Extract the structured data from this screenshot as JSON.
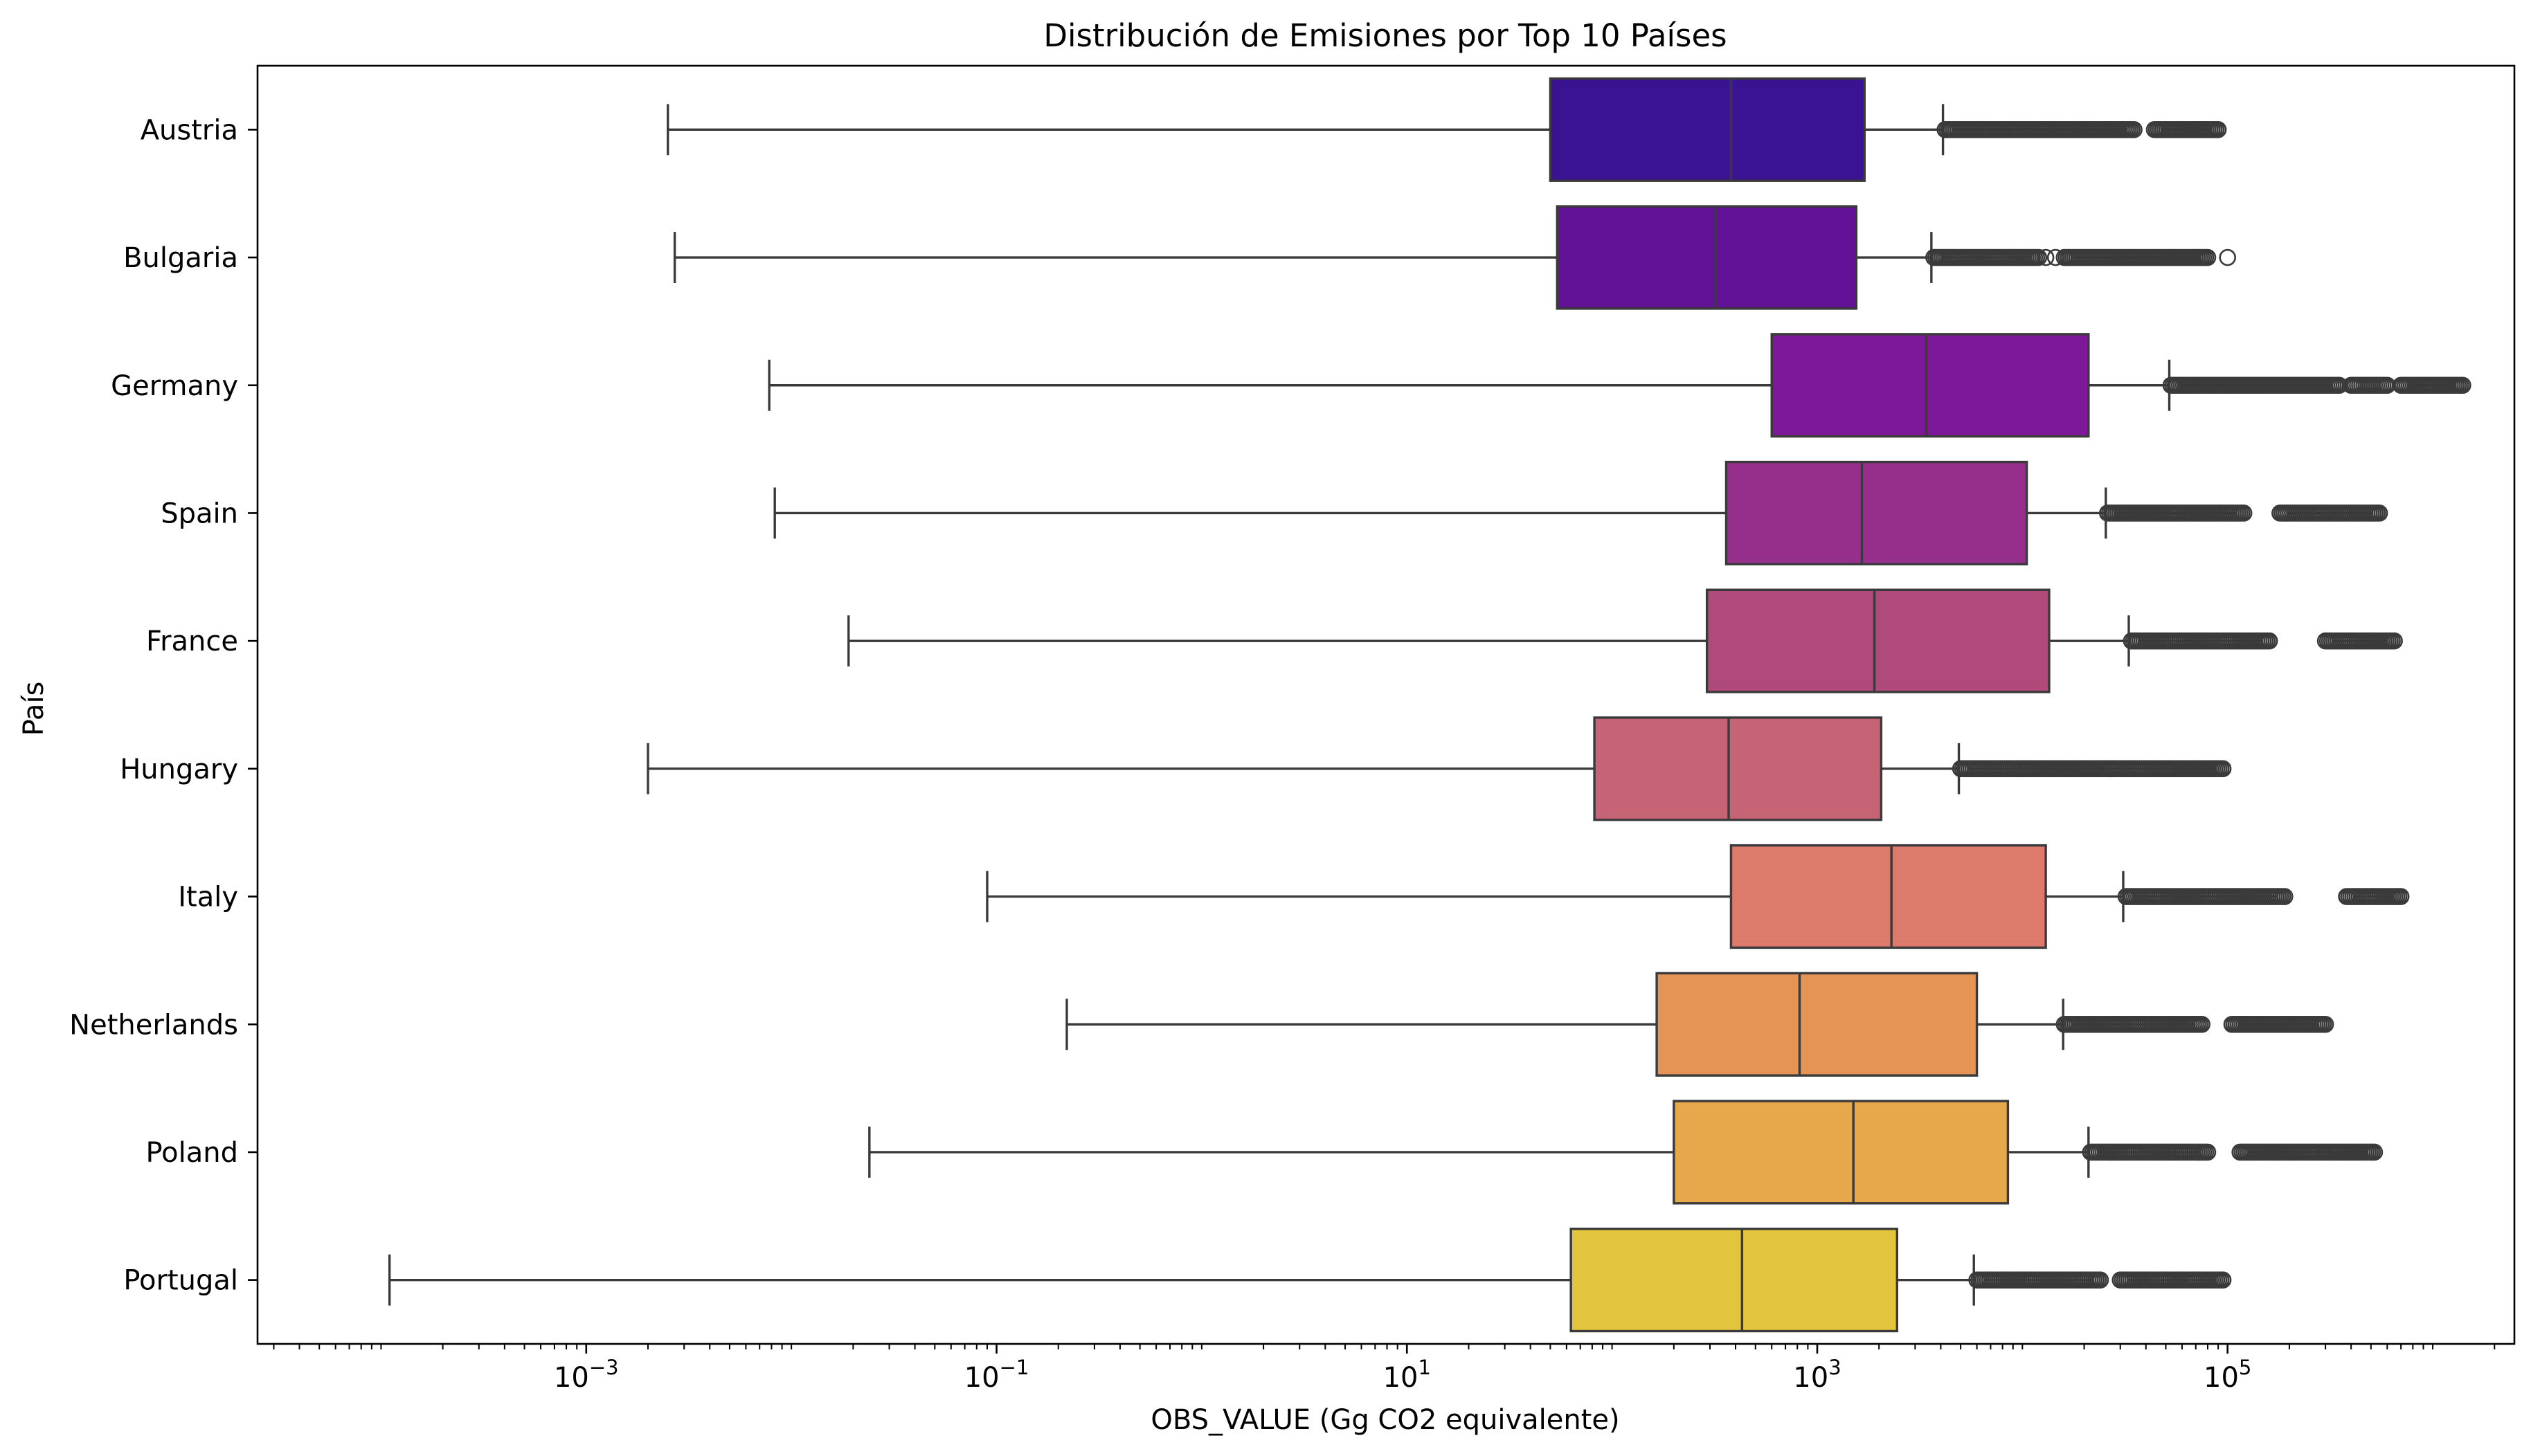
{
  "chart_data": {
    "type": "boxplot",
    "orientation": "horizontal",
    "title": "Distribución de Emisiones por Top 10 Países",
    "xlabel": "OBS_VALUE (Gg CO2 equivalente)",
    "ylabel": "País",
    "x_scale": "log",
    "xlim": [
      2.5e-05,
      2500000
    ],
    "xticks": [
      {
        "value": 0.001,
        "base": "10",
        "exp": "−3"
      },
      {
        "value": 0.1,
        "base": "10",
        "exp": "−1"
      },
      {
        "value": 10,
        "base": "10",
        "exp": "1"
      },
      {
        "value": 1000,
        "base": "10",
        "exp": "3"
      },
      {
        "value": 100000,
        "base": "10",
        "exp": "5"
      }
    ],
    "grid": false,
    "legend": "none",
    "series": [
      {
        "name": "Austria",
        "color": "#3a1392",
        "whisker_low": 0.0025,
        "q1": 50,
        "median": 380,
        "q3": 1700,
        "whisker_high": 4100,
        "outlier_ranges": [
          [
            4200,
            35000
          ],
          [
            44000,
            90000
          ]
        ]
      },
      {
        "name": "Bulgaria",
        "color": "#611296",
        "whisker_low": 0.0027,
        "q1": 54,
        "median": 320,
        "q3": 1550,
        "whisker_high": 3600,
        "outlier_ranges": [
          [
            3700,
            12000
          ],
          [
            16000,
            80000
          ]
        ],
        "outliers": [
          13000,
          14500,
          100000
        ]
      },
      {
        "name": "Germany",
        "color": "#7d1898",
        "whisker_low": 0.0078,
        "q1": 600,
        "median": 3400,
        "q3": 21000,
        "whisker_high": 52000,
        "outlier_ranges": [
          [
            53000,
            350000
          ],
          [
            400000,
            600000
          ],
          [
            700000,
            1400000
          ]
        ]
      },
      {
        "name": "Spain",
        "color": "#962e8c",
        "whisker_low": 0.0083,
        "q1": 360,
        "median": 1650,
        "q3": 10500,
        "whisker_high": 25500,
        "outlier_ranges": [
          [
            26000,
            120000
          ],
          [
            180000,
            550000
          ]
        ]
      },
      {
        "name": "France",
        "color": "#b04a7a",
        "whisker_low": 0.019,
        "q1": 290,
        "median": 1900,
        "q3": 13500,
        "whisker_high": 33000,
        "outlier_ranges": [
          [
            34000,
            160000
          ],
          [
            300000,
            650000
          ]
        ]
      },
      {
        "name": "Hungary",
        "color": "#c66375",
        "whisker_low": 0.002,
        "q1": 82,
        "median": 370,
        "q3": 2050,
        "whisker_high": 4900,
        "outlier_ranges": [
          [
            5000,
            95000
          ]
        ]
      },
      {
        "name": "Italy",
        "color": "#dc7a6c",
        "whisker_low": 0.09,
        "q1": 380,
        "median": 2300,
        "q3": 13000,
        "whisker_high": 31000,
        "outlier_ranges": [
          [
            32000,
            190000
          ],
          [
            380000,
            700000
          ]
        ]
      },
      {
        "name": "Netherlands",
        "color": "#e69456",
        "whisker_low": 0.22,
        "q1": 165,
        "median": 820,
        "q3": 6000,
        "whisker_high": 15800,
        "outlier_ranges": [
          [
            16000,
            75000
          ],
          [
            105000,
            300000
          ]
        ]
      },
      {
        "name": "Poland",
        "color": "#e6a84a",
        "whisker_low": 0.024,
        "q1": 200,
        "median": 1500,
        "q3": 8500,
        "whisker_high": 21000,
        "outlier_ranges": [
          [
            21500,
            80000
          ],
          [
            115000,
            520000
          ]
        ]
      },
      {
        "name": "Portugal",
        "color": "#e2c53d",
        "whisker_low": 0.00011,
        "q1": 63,
        "median": 430,
        "q3": 2450,
        "whisker_high": 5800,
        "outlier_ranges": [
          [
            6000,
            24000
          ],
          [
            30000,
            95000
          ]
        ]
      }
    ]
  }
}
